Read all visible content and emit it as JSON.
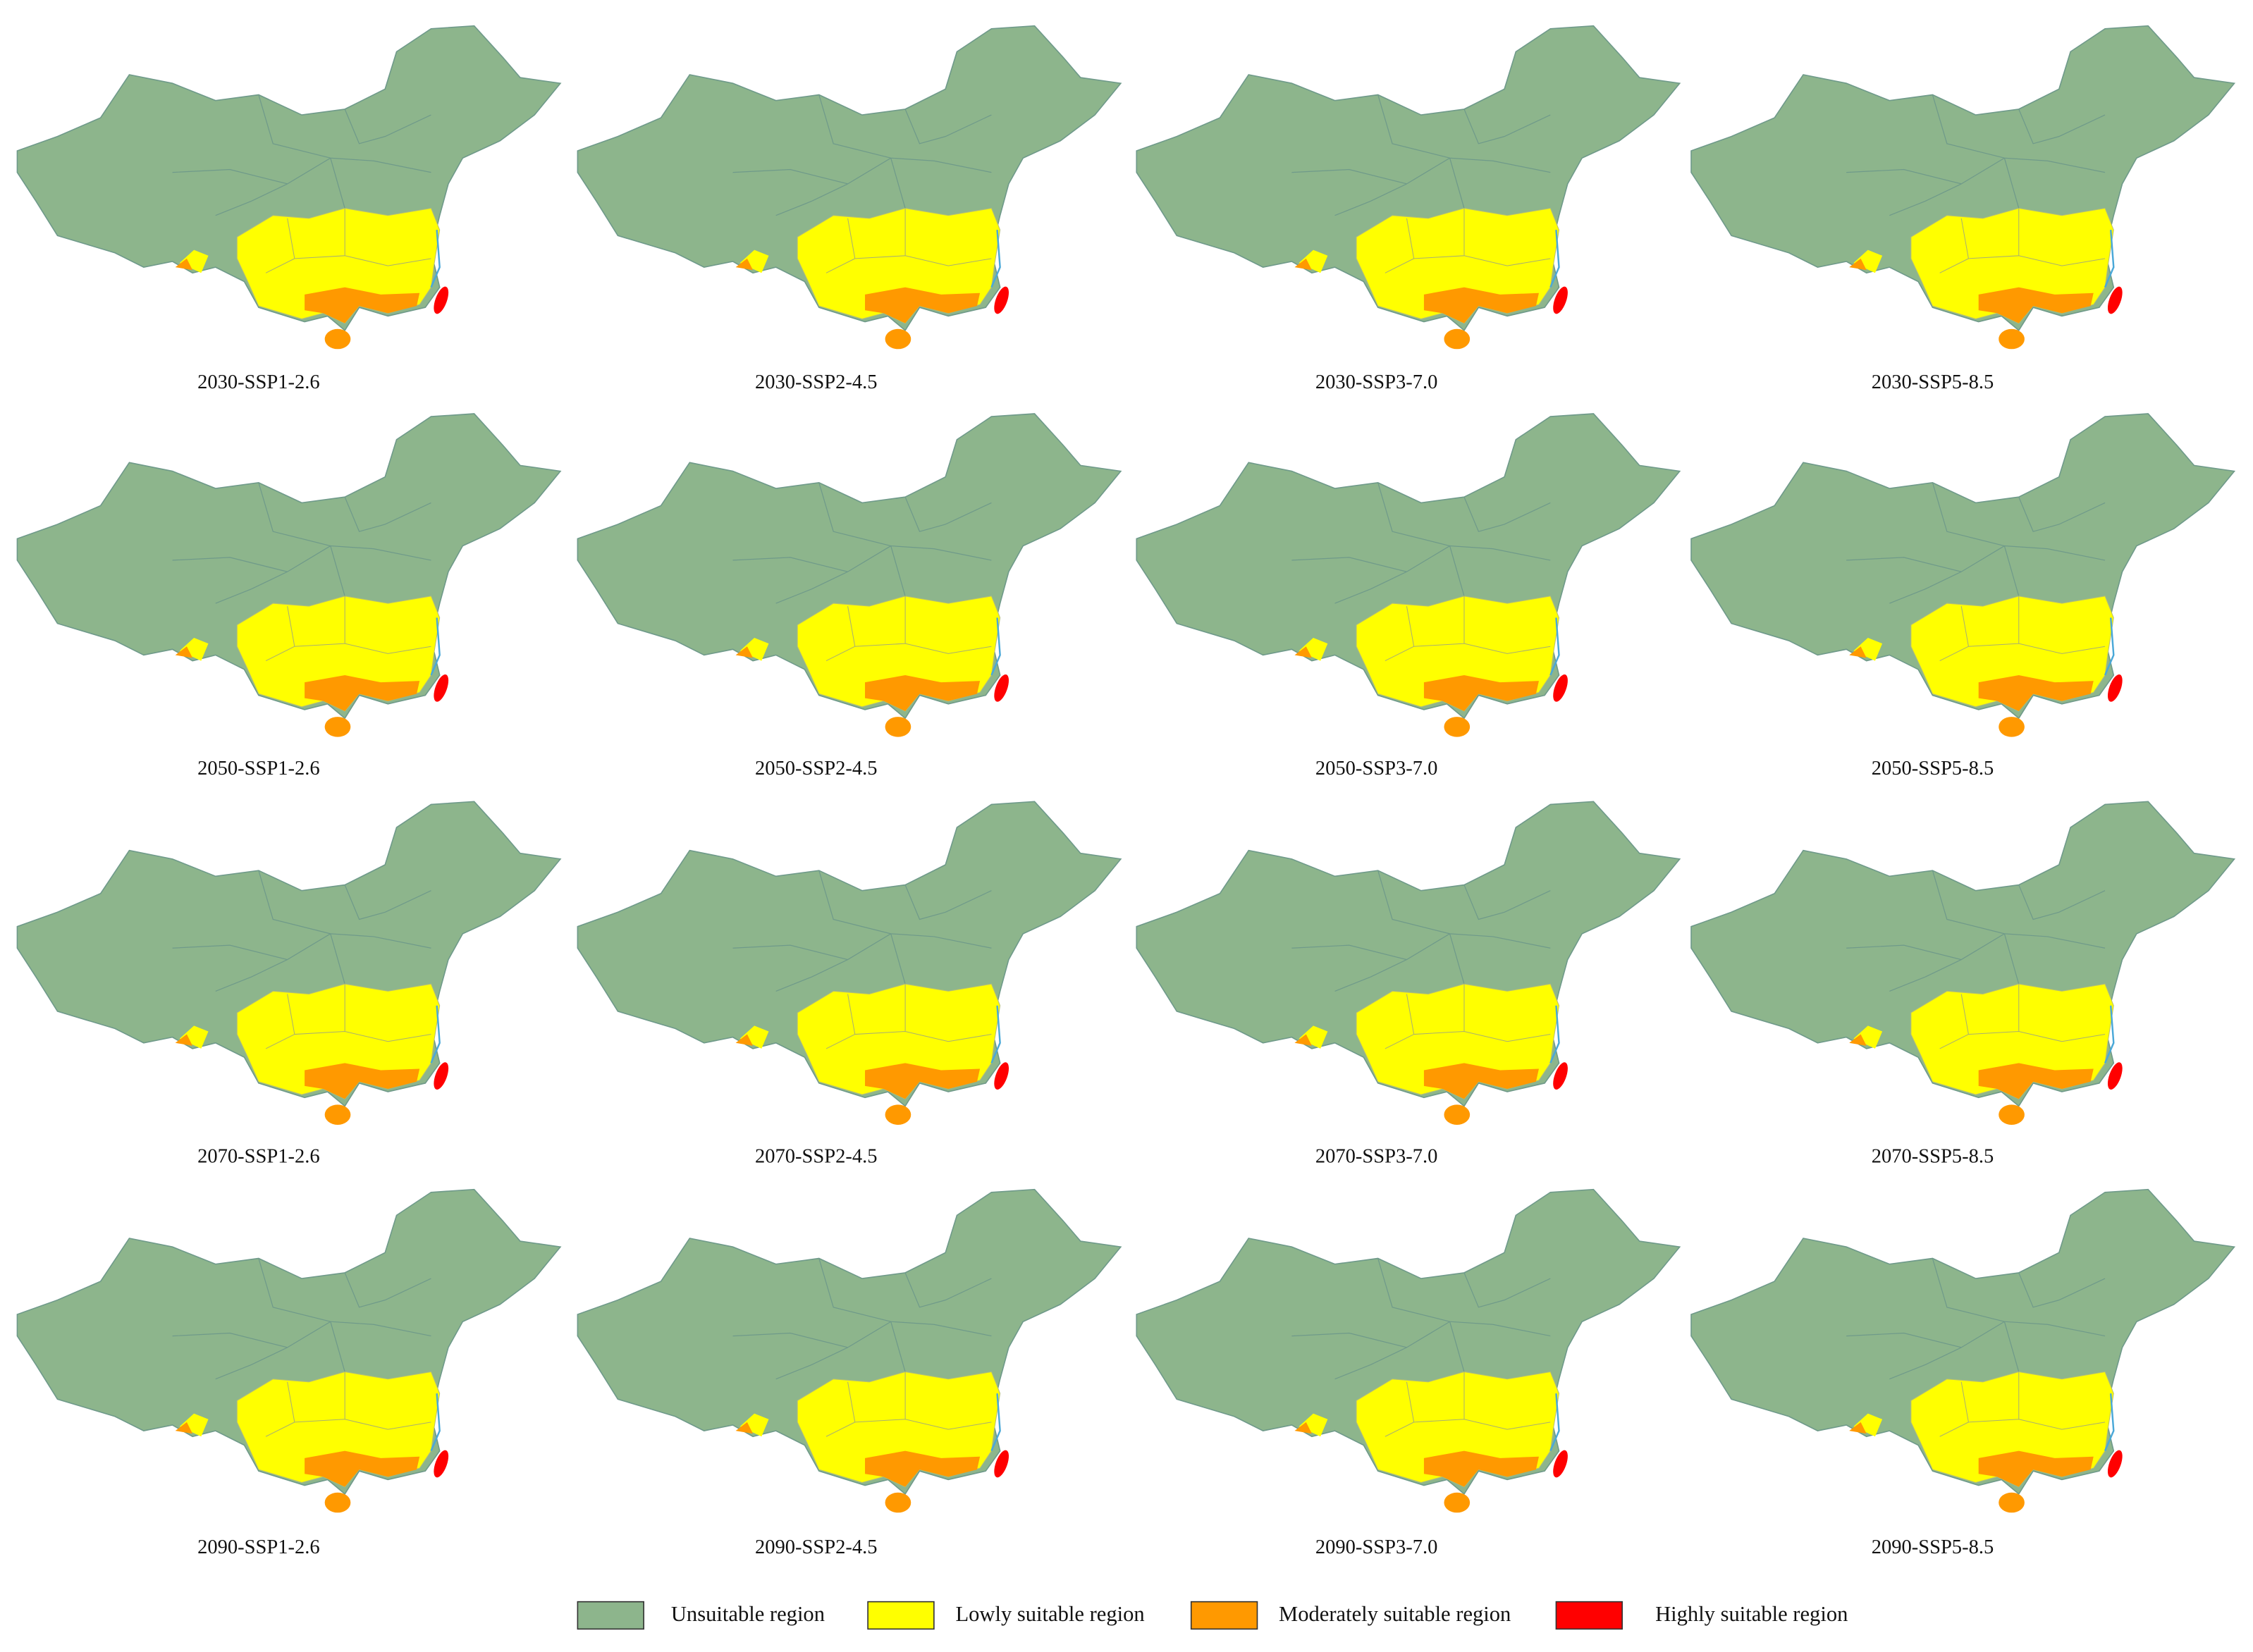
{
  "panels": [
    {
      "label": "2030-SSP1-2.6"
    },
    {
      "label": "2030-SSP2-4.5"
    },
    {
      "label": "2030-SSP3-7.0"
    },
    {
      "label": "2030-SSP5-8.5"
    },
    {
      "label": "2050-SSP1-2.6"
    },
    {
      "label": "2050-SSP2-4.5"
    },
    {
      "label": "2050-SSP3-7.0"
    },
    {
      "label": "2050-SSP5-8.5"
    },
    {
      "label": "2070-SSP1-2.6"
    },
    {
      "label": "2070-SSP2-4.5"
    },
    {
      "label": "2070-SSP3-7.0"
    },
    {
      "label": "2070-SSP5-8.5"
    },
    {
      "label": "2090-SSP1-2.6"
    },
    {
      "label": "2090-SSP2-4.5"
    },
    {
      "label": "2090-SSP3-7.0"
    },
    {
      "label": "2090-SSP5-8.5"
    }
  ],
  "legend": [
    {
      "label": "Unsuitable region",
      "color": "#8db58c"
    },
    {
      "label": "Lowly suitable region",
      "color": "#ffff00"
    },
    {
      "label": "Moderately suitable region",
      "color": "#ff9900"
    },
    {
      "label": "Highly suitable region",
      "color": "#ff0000"
    }
  ]
}
